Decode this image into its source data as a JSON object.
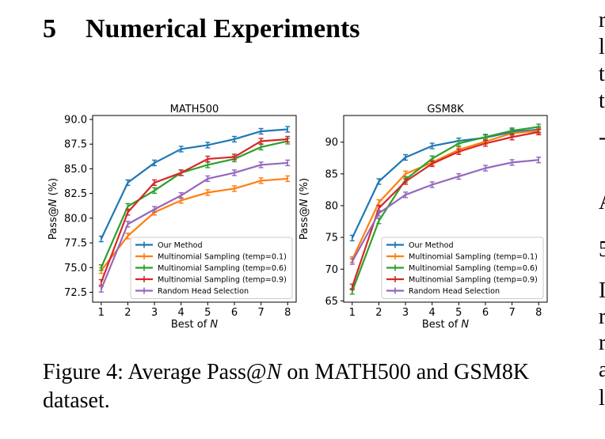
{
  "section": {
    "number": "5",
    "title": "Numerical Experiments"
  },
  "caption": {
    "prefix": "Figure 4: Average Pass@",
    "var": "N",
    "suffix": " on MATH500 and GSM8K dataset."
  },
  "margin_fragments": [
    "r",
    "l",
    "t",
    "t",
    "-",
    "A",
    "5",
    "I",
    "r",
    "r",
    "a",
    "l"
  ],
  "colors": {
    "our": "#1f77b4",
    "t01": "#ff7f0e",
    "t06": "#2ca02c",
    "t09": "#d62728",
    "random": "#9467bd"
  },
  "chart_data": [
    {
      "type": "line",
      "title": "MATH500",
      "xlabel": "Best of N",
      "ylabel": "Pass@N (%)",
      "x": [
        1,
        2,
        3,
        4,
        5,
        6,
        7,
        8
      ],
      "ylim": [
        71.5,
        90.4
      ],
      "yticks": [
        72.5,
        75.0,
        77.5,
        80.0,
        82.5,
        85.0,
        87.5,
        90.0
      ],
      "grid": false,
      "legend": "bottom-right",
      "series": [
        {
          "name": "Our Method",
          "color": "#1f77b4",
          "values": [
            77.9,
            83.6,
            85.6,
            87.0,
            87.4,
            88.0,
            88.8,
            89.0
          ]
        },
        {
          "name": "Multinomial Sampling (temp=0.1)",
          "color": "#ff7f0e",
          "values": [
            74.7,
            78.2,
            80.6,
            81.8,
            82.6,
            83.0,
            83.8,
            84.0
          ]
        },
        {
          "name": "Multinomial Sampling (temp=0.6)",
          "color": "#2ca02c",
          "values": [
            75.0,
            81.2,
            82.8,
            84.6,
            85.4,
            86.0,
            87.2,
            87.8
          ]
        },
        {
          "name": "Multinomial Sampling (temp=0.9)",
          "color": "#d62728",
          "values": [
            73.5,
            80.6,
            83.6,
            84.6,
            86.0,
            86.2,
            87.8,
            88.0
          ]
        },
        {
          "name": "Random Head Selection",
          "color": "#9467bd",
          "values": [
            72.8,
            79.4,
            80.9,
            82.3,
            84.0,
            84.6,
            85.4,
            85.6
          ]
        }
      ]
    },
    {
      "type": "line",
      "title": "GSM8K",
      "xlabel": "Best of N",
      "ylabel": "Pass@N (%)",
      "x": [
        1,
        2,
        3,
        4,
        5,
        6,
        7,
        8
      ],
      "ylim": [
        64.8,
        94.2
      ],
      "yticks": [
        65,
        70,
        75,
        80,
        85,
        90
      ],
      "grid": false,
      "legend": "bottom-right",
      "series": [
        {
          "name": "Our Method",
          "color": "#1f77b4",
          "values": [
            74.9,
            83.8,
            87.6,
            89.4,
            90.2,
            90.7,
            91.6,
            92.0
          ]
        },
        {
          "name": "Multinomial Sampling (temp=0.1)",
          "color": "#ff7f0e",
          "values": [
            71.5,
            80.5,
            85.0,
            86.8,
            88.8,
            90.1,
            91.4,
            91.8
          ]
        },
        {
          "name": "Multinomial Sampling (temp=0.6)",
          "color": "#2ca02c",
          "values": [
            66.5,
            77.6,
            84.1,
            87.4,
            89.8,
            90.8,
            91.8,
            92.4
          ]
        },
        {
          "name": "Multinomial Sampling (temp=0.9)",
          "color": "#d62728",
          "values": [
            67.2,
            79.6,
            83.8,
            86.6,
            88.5,
            89.8,
            90.8,
            91.6
          ]
        },
        {
          "name": "Random Head Selection",
          "color": "#9467bd",
          "values": [
            71.2,
            78.8,
            81.7,
            83.3,
            84.6,
            85.9,
            86.8,
            87.2
          ]
        }
      ]
    }
  ]
}
